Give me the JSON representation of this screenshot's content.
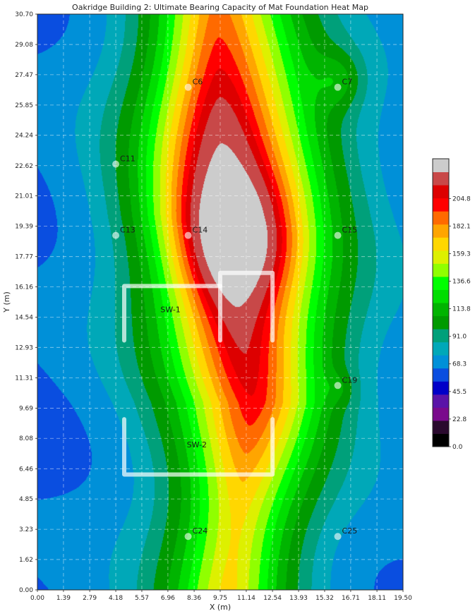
{
  "chart_data": {
    "type": "heatmap",
    "title": "Oakridge Building 2: Ultimate Bearing Capacity of Mat Foundation Heat Map",
    "xlabel": "X (m)",
    "ylabel": "Y (m)",
    "xlim": [
      0,
      19.5
    ],
    "ylim": [
      0,
      30.7
    ],
    "x_ticks": [
      "0.00",
      "1.39",
      "2.79",
      "4.18",
      "5.57",
      "6.96",
      "8.36",
      "9.75",
      "11.14",
      "12.54",
      "13.93",
      "15.32",
      "16.71",
      "18.11",
      "19.50"
    ],
    "y_ticks": [
      "0.00",
      "1.62",
      "3.23",
      "4.85",
      "6.46",
      "8.08",
      "9.69",
      "11.31",
      "12.93",
      "14.54",
      "16.16",
      "17.77",
      "19.39",
      "21.01",
      "22.62",
      "24.24",
      "25.85",
      "27.47",
      "29.08",
      "30.70"
    ],
    "grid": true,
    "colorbar": {
      "ticks": [
        "0.0",
        "22.8",
        "45.5",
        "68.3",
        "91.0",
        "113.8",
        "136.6",
        "159.3",
        "182.1",
        "204.8"
      ],
      "range": [
        0,
        216
      ],
      "levels": [
        {
          "from": 0,
          "color": "#000000"
        },
        {
          "from": 11,
          "color": "#2a0a2e"
        },
        {
          "from": 22,
          "color": "#7a0a8c"
        },
        {
          "from": 34,
          "color": "#5a14a8"
        },
        {
          "from": 45,
          "color": "#0000c8"
        },
        {
          "from": 57,
          "color": "#0a4ee0"
        },
        {
          "from": 68,
          "color": "#0090d8"
        },
        {
          "from": 80,
          "color": "#00a8b8"
        },
        {
          "from": 91,
          "color": "#00a07a"
        },
        {
          "from": 102,
          "color": "#009a00"
        },
        {
          "from": 114,
          "color": "#00b400"
        },
        {
          "from": 125,
          "color": "#00dd00"
        },
        {
          "from": 136,
          "color": "#00ff00"
        },
        {
          "from": 147,
          "color": "#90ff00"
        },
        {
          "from": 159,
          "color": "#ddf000"
        },
        {
          "from": 170,
          "color": "#ffd700"
        },
        {
          "from": 182,
          "color": "#ffa500"
        },
        {
          "from": 193,
          "color": "#ff6a00"
        },
        {
          "from": 205,
          "color": "#ff0000"
        },
        {
          "from": 216,
          "color": "#dd0000"
        }
      ],
      "extra_levels": [
        {
          "color": "#c84848"
        },
        {
          "color": "#cccccc"
        }
      ]
    },
    "columns": [
      {
        "label": "C6",
        "x": 8.04,
        "y": 26.8
      },
      {
        "label": "C7",
        "x": 16.02,
        "y": 26.8
      },
      {
        "label": "C11",
        "x": 4.18,
        "y": 22.7
      },
      {
        "label": "C13",
        "x": 4.18,
        "y": 18.9
      },
      {
        "label": "C14",
        "x": 8.04,
        "y": 18.9
      },
      {
        "label": "C15",
        "x": 16.02,
        "y": 18.9
      },
      {
        "label": "C19",
        "x": 16.02,
        "y": 10.9
      },
      {
        "label": "C24",
        "x": 8.04,
        "y": 2.85
      },
      {
        "label": "C25",
        "x": 16.02,
        "y": 2.85
      }
    ],
    "walls": [
      {
        "label": "SW-1",
        "label_at": [
          7.1,
          14.8
        ],
        "paths": [
          [
            [
              4.63,
              13.3
            ],
            [
              4.63,
              16.2
            ],
            [
              9.75,
              16.2
            ]
          ],
          [
            [
              9.75,
              13.3
            ],
            [
              9.75,
              16.9
            ],
            [
              12.54,
              16.9
            ],
            [
              12.54,
              13.3
            ]
          ]
        ]
      },
      {
        "label": "SW-2",
        "label_at": [
          8.5,
          7.6
        ],
        "paths": [
          [
            [
              4.63,
              9.1
            ],
            [
              4.63,
              6.15
            ],
            [
              12.54,
              6.15
            ],
            [
              12.54,
              9.1
            ]
          ]
        ]
      }
    ],
    "field": {
      "base": 70,
      "ridge": {
        "x": [
          10.2,
          11.5,
          9.8,
          9.6
        ],
        "y": [
          0,
          10,
          20,
          30.7
        ],
        "width": 3.4,
        "amp": 100,
        "power": 1.6
      },
      "bumps": [
        {
          "cx": 11.0,
          "cy": 19.2,
          "sx": 4.0,
          "sy": 7.0,
          "amp": 75
        },
        {
          "cx": 10.8,
          "cy": 18.7,
          "sx": 2.0,
          "sy": 2.3,
          "amp": 55
        },
        {
          "cx": 10.7,
          "cy": 25.5,
          "sx": 3.3,
          "sy": 4.0,
          "amp": 20
        },
        {
          "cx": 11.5,
          "cy": 11.5,
          "sx": 3.5,
          "sy": 3.0,
          "amp": 10
        },
        {
          "cx": 16.1,
          "cy": 27.2,
          "sx": 0.9,
          "sy": 1.1,
          "amp": 24
        },
        {
          "cx": 16.1,
          "cy": 10.8,
          "sx": 0.6,
          "sy": 0.6,
          "amp": 12
        }
      ]
    }
  }
}
